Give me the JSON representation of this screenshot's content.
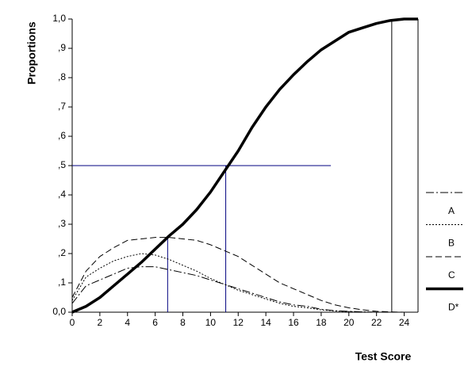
{
  "chart_data": {
    "type": "line",
    "y_label": "Proportions",
    "x_label": "Test Score",
    "x": [
      0,
      1,
      2,
      3,
      4,
      5,
      6,
      7,
      8,
      9,
      10,
      11,
      12,
      13,
      14,
      15,
      16,
      17,
      18,
      19,
      20,
      21,
      22,
      23,
      24,
      25
    ],
    "xlim": [
      0,
      25
    ],
    "xticks": [
      0,
      2,
      4,
      6,
      8,
      10,
      12,
      14,
      16,
      18,
      20,
      22,
      24
    ],
    "ylim": [
      0,
      1
    ],
    "yticks": [
      {
        "value": 0,
        "label": "0,0"
      },
      {
        "value": 0.1,
        "label": ",1"
      },
      {
        "value": 0.2,
        "label": ",2"
      },
      {
        "value": 0.3,
        "label": ",3"
      },
      {
        "value": 0.4,
        "label": ",4"
      },
      {
        "value": 0.5,
        "label": ",5"
      },
      {
        "value": 0.6,
        "label": ",6"
      },
      {
        "value": 0.7,
        "label": ",7"
      },
      {
        "value": 0.8,
        "label": ",8"
      },
      {
        "value": 0.9,
        "label": ",9"
      },
      {
        "value": 1,
        "label": "1,0"
      }
    ],
    "series": [
      {
        "name": "A",
        "color": "#000000",
        "dash": "10,3,2,3",
        "width": 1,
        "values": [
          0.03,
          0.09,
          0.11,
          0.13,
          0.15,
          0.155,
          0.155,
          0.145,
          0.135,
          0.125,
          0.11,
          0.095,
          0.08,
          0.065,
          0.05,
          0.035,
          0.025,
          0.02,
          0.01,
          0.005,
          0.003,
          0.001,
          0,
          0,
          0,
          0
        ]
      },
      {
        "name": "B",
        "color": "#000000",
        "dash": "2,2",
        "width": 1,
        "values": [
          0.04,
          0.12,
          0.15,
          0.175,
          0.19,
          0.2,
          0.195,
          0.18,
          0.16,
          0.14,
          0.115,
          0.095,
          0.075,
          0.06,
          0.045,
          0.03,
          0.02,
          0.015,
          0.008,
          0.004,
          0.002,
          0.001,
          0,
          0,
          0,
          0
        ]
      },
      {
        "name": "C",
        "color": "#000000",
        "dash": "8,4",
        "width": 1,
        "values": [
          0.05,
          0.14,
          0.19,
          0.22,
          0.245,
          0.25,
          0.255,
          0.255,
          0.25,
          0.245,
          0.23,
          0.21,
          0.19,
          0.16,
          0.13,
          0.1,
          0.08,
          0.06,
          0.04,
          0.025,
          0.015,
          0.008,
          0.003,
          0.001,
          0,
          0
        ]
      },
      {
        "name": "D*",
        "color": "#000000",
        "dash": "none",
        "width": 3.5,
        "values": [
          0,
          0.02,
          0.05,
          0.09,
          0.13,
          0.17,
          0.215,
          0.26,
          0.3,
          0.35,
          0.41,
          0.48,
          0.55,
          0.63,
          0.7,
          0.76,
          0.81,
          0.855,
          0.895,
          0.925,
          0.955,
          0.97,
          0.985,
          0.995,
          1,
          1
        ]
      }
    ],
    "reference_lines": [
      {
        "x": [
          0,
          18.7
        ],
        "y": [
          0.5,
          0.5
        ],
        "color": "#000080"
      },
      {
        "x": [
          6.9,
          6.9
        ],
        "y": [
          0,
          0.26
        ],
        "color": "#000080"
      },
      {
        "x": [
          11.1,
          11.1
        ],
        "y": [
          0,
          0.5
        ],
        "color": "#000080"
      },
      {
        "x": [
          23.1,
          23.1
        ],
        "y": [
          0,
          1
        ],
        "color": "#000000"
      }
    ]
  }
}
